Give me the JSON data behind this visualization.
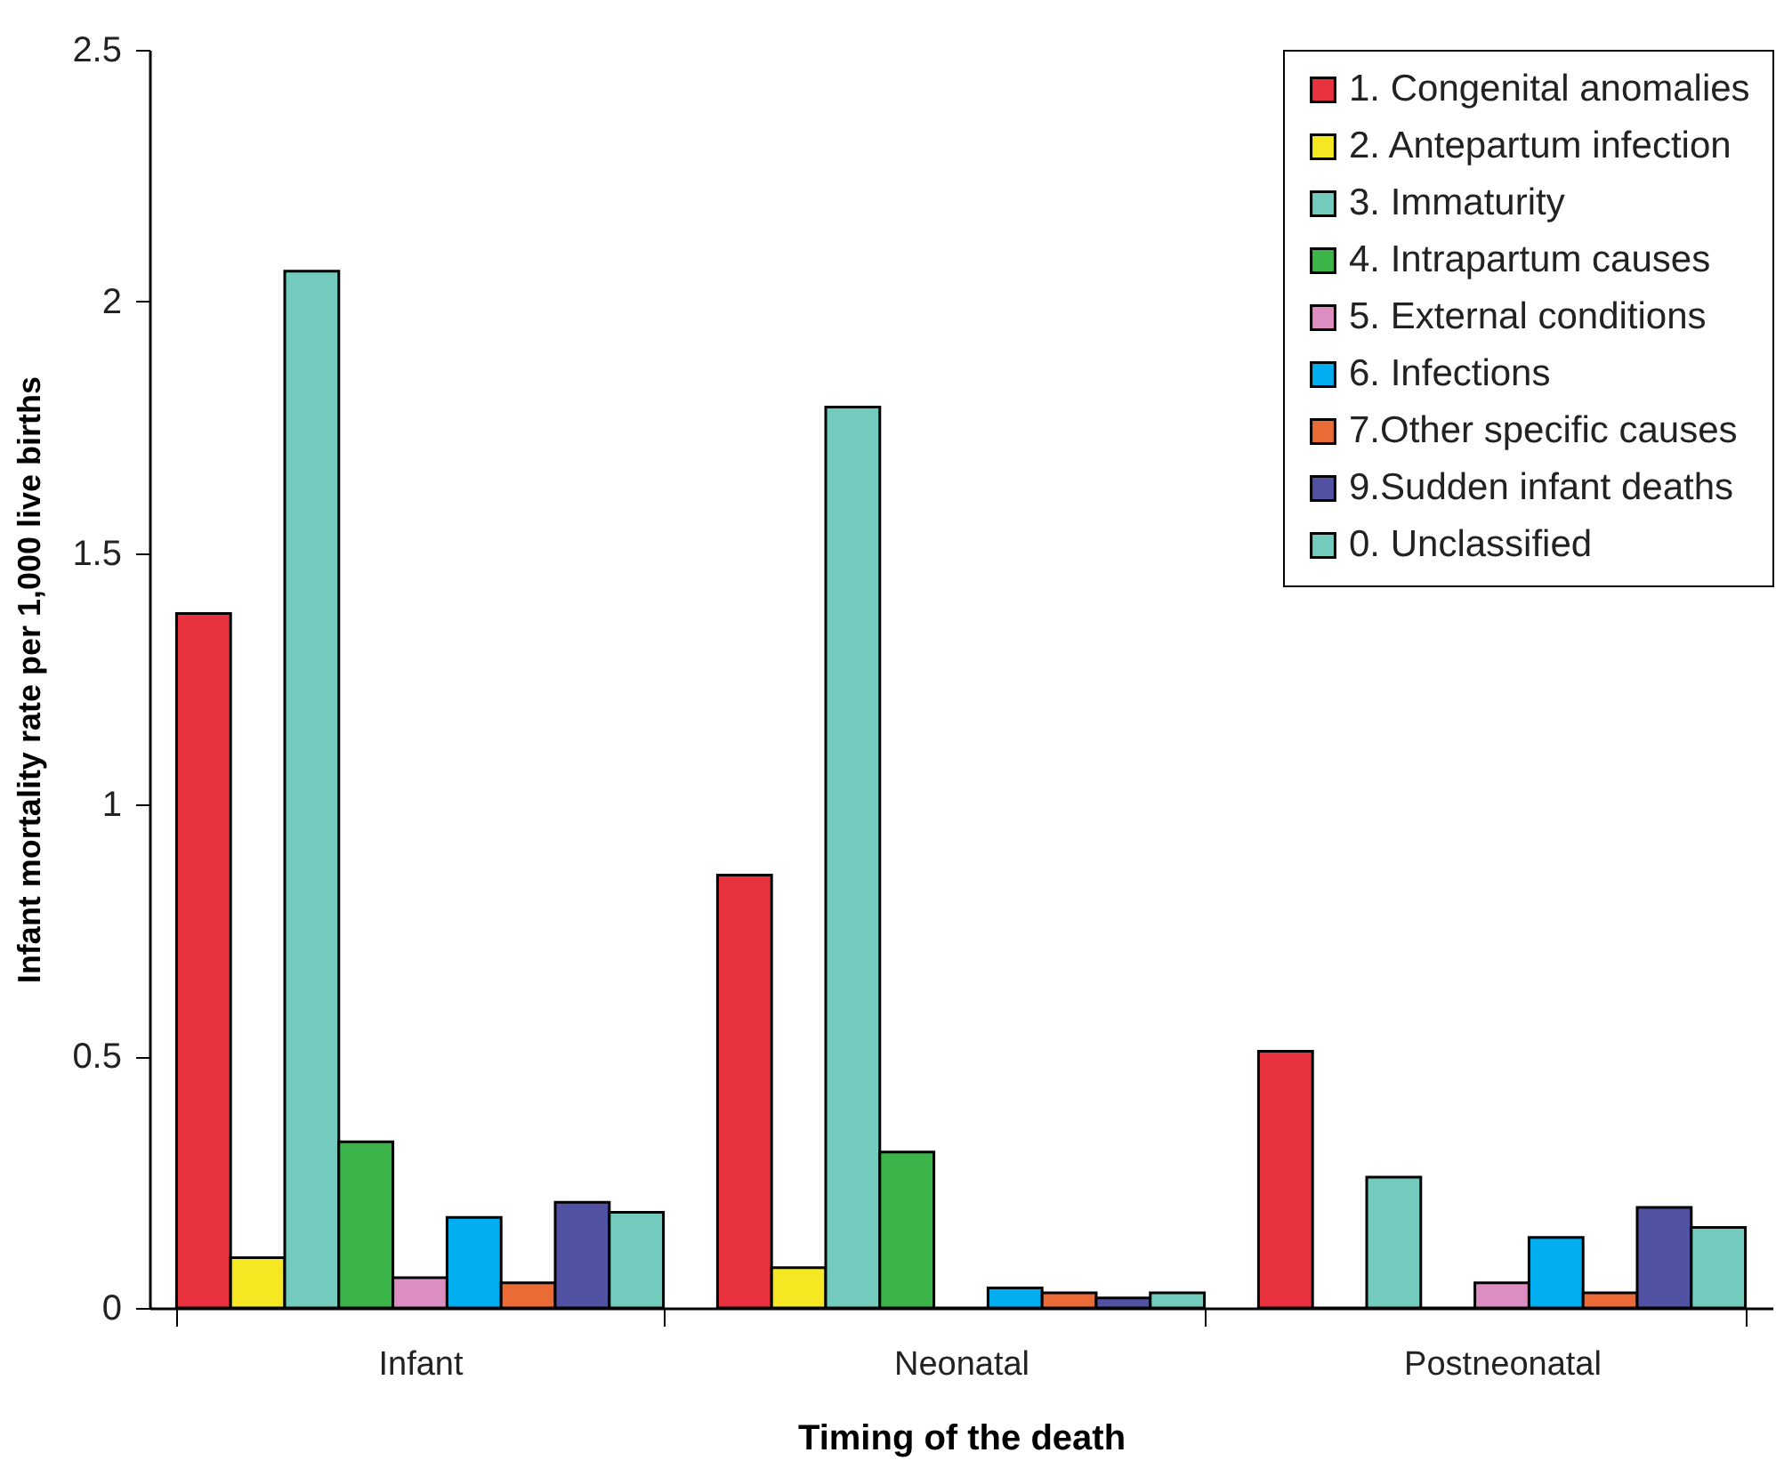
{
  "chart_data": {
    "type": "bar",
    "xlabel": "Timing of the death",
    "ylabel": "Infant mortality rate per 1,000 live births",
    "categories": [
      "Infant",
      "Neonatal",
      "Postneonatal"
    ],
    "series": [
      {
        "name": "1. Congenital anomalies",
        "color": "#e8333f",
        "values": [
          1.38,
          0.86,
          0.51
        ]
      },
      {
        "name": "2. Antepartum infection",
        "color": "#f5e722",
        "values": [
          0.1,
          0.08,
          0
        ]
      },
      {
        "name": "3. Immaturity",
        "color": "#72cbbd",
        "values": [
          2.06,
          1.79,
          0.26
        ]
      },
      {
        "name": "4. Intrapartum causes",
        "color": "#3bb54a",
        "values": [
          0.33,
          0.31,
          0
        ]
      },
      {
        "name": "5. External conditions",
        "color": "#dc8ec0",
        "values": [
          0.06,
          0,
          0.05
        ]
      },
      {
        "name": "6. Infections",
        "color": "#00aeef",
        "values": [
          0.18,
          0.04,
          0.14
        ]
      },
      {
        "name": "7.Other specific causes",
        "color": "#ea6b35",
        "values": [
          0.05,
          0.03,
          0.03
        ]
      },
      {
        "name": "9.Sudden infant deaths",
        "color": "#5152a2",
        "values": [
          0.21,
          0.02,
          0.2
        ]
      },
      {
        "name": "0. Unclassified",
        "color": "#72cbbd",
        "values": [
          0.19,
          0.03,
          0.16
        ]
      }
    ],
    "ylim": [
      0,
      2.5
    ],
    "yticks": [
      0,
      0.5,
      1,
      1.5,
      2,
      2.5
    ],
    "grid": false,
    "legend": "top right"
  }
}
